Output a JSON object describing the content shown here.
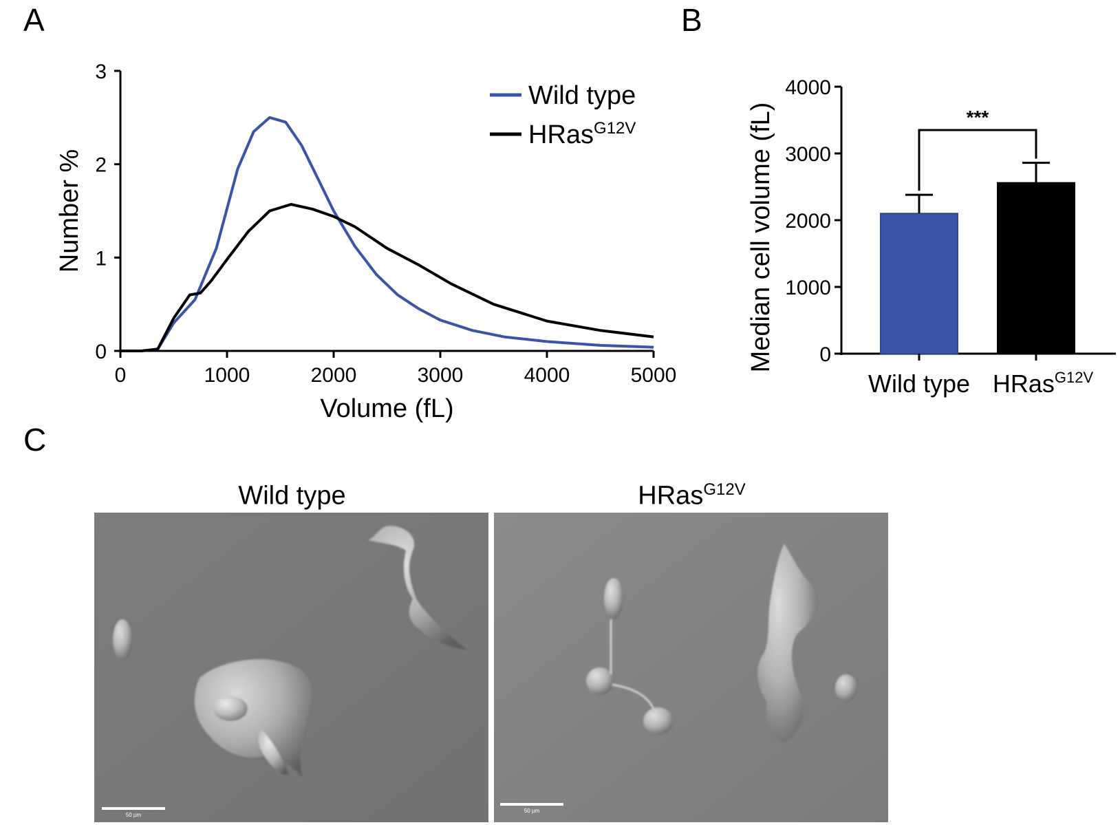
{
  "panels": {
    "a": "A",
    "b": "B",
    "c": "C"
  },
  "colors": {
    "wild_type": "#3a55a8",
    "hras": "#000000",
    "micrograph_bg": "#7a7a7a"
  },
  "chart_data": [
    {
      "type": "line",
      "panel": "A",
      "xlabel": "Volume (fL)",
      "ylabel": "Number %",
      "xlim": [
        0,
        5000
      ],
      "ylim": [
        0,
        3
      ],
      "xticks": [
        0,
        1000,
        2000,
        3000,
        4000,
        5000
      ],
      "yticks": [
        0,
        1,
        2,
        3
      ],
      "grid": false,
      "legend_position": "top-right",
      "series": [
        {
          "name": "Wild type",
          "color": "#3a55a8",
          "x": [
            0,
            200,
            350,
            500,
            700,
            900,
            1100,
            1250,
            1400,
            1550,
            1700,
            1850,
            2000,
            2200,
            2400,
            2600,
            2800,
            3000,
            3300,
            3600,
            4000,
            4500,
            5000
          ],
          "y": [
            0,
            0,
            0.02,
            0.3,
            0.55,
            1.1,
            1.95,
            2.35,
            2.5,
            2.45,
            2.2,
            1.85,
            1.5,
            1.12,
            0.82,
            0.6,
            0.45,
            0.33,
            0.22,
            0.15,
            0.1,
            0.06,
            0.04
          ]
        },
        {
          "name": "HRas",
          "name_superscript": "G12V",
          "color": "#000000",
          "x": [
            0,
            200,
            350,
            500,
            650,
            750,
            850,
            1000,
            1200,
            1400,
            1600,
            1800,
            2000,
            2200,
            2500,
            2800,
            3100,
            3500,
            4000,
            4500,
            5000
          ],
          "y": [
            0,
            0,
            0.02,
            0.35,
            0.6,
            0.62,
            0.75,
            0.98,
            1.28,
            1.5,
            1.57,
            1.52,
            1.44,
            1.33,
            1.1,
            0.92,
            0.72,
            0.5,
            0.32,
            0.22,
            0.15
          ]
        }
      ]
    },
    {
      "type": "bar",
      "panel": "B",
      "ylabel": "Median cell volume (fL)",
      "ylim": [
        0,
        4000
      ],
      "yticks": [
        0,
        1000,
        2000,
        3000,
        4000
      ],
      "grid": false,
      "categories": [
        "Wild type",
        "HRas"
      ],
      "category_superscripts": [
        "",
        "G12V"
      ],
      "values": [
        2100,
        2560
      ],
      "errors": [
        280,
        300
      ],
      "bar_colors": [
        "#3a55a8",
        "#000000"
      ],
      "significance": "***"
    }
  ],
  "micrographs": [
    {
      "title": "Wild type",
      "title_superscript": "",
      "scale_label": "50 µm"
    },
    {
      "title": "HRas",
      "title_superscript": "G12V",
      "scale_label": "50 µm"
    }
  ]
}
